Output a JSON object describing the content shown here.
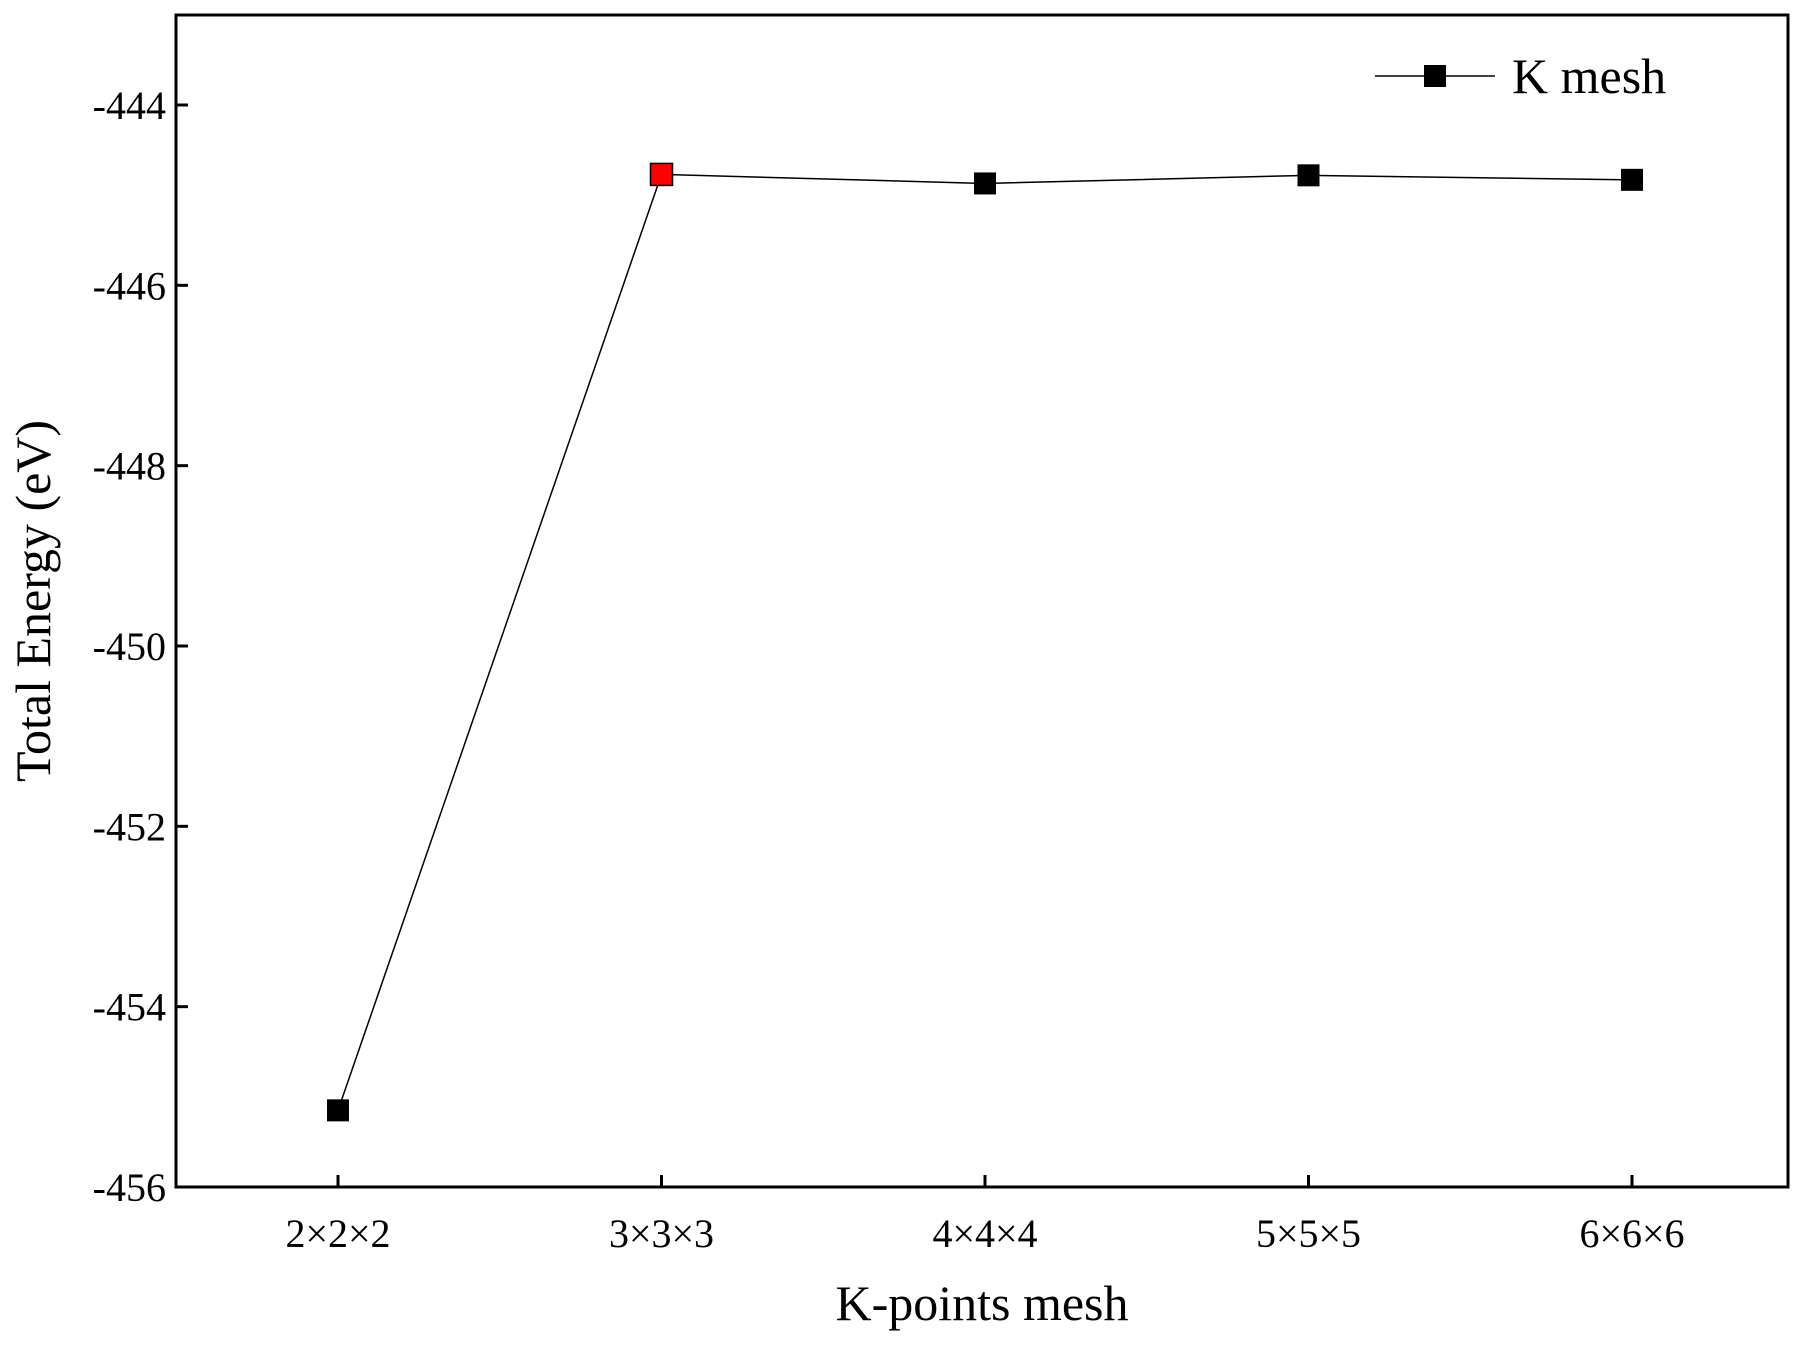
{
  "chart_data": {
    "type": "line",
    "title": "",
    "xlabel": "K-points mesh",
    "ylabel": "Total Energy (eV)",
    "categories": [
      "2×2×2",
      "3×3×3",
      "4×4×4",
      "5×5×5",
      "6×6×6"
    ],
    "series": [
      {
        "name": "K mesh",
        "values": [
          -455.15,
          -444.77,
          -444.87,
          -444.78,
          -444.83
        ],
        "color": "#000000",
        "marker": "square",
        "highlight_index": 1,
        "highlight_color": "#ff0000"
      }
    ],
    "ylim": [
      -456,
      -443
    ],
    "yticks": [
      -456,
      -454,
      -452,
      -450,
      -448,
      -446,
      -444
    ],
    "ytick_labels": [
      "-456",
      "-454",
      "-452",
      "-450",
      "-448",
      "-446",
      "-444"
    ],
    "grid": false,
    "legend_position": "top-right"
  }
}
